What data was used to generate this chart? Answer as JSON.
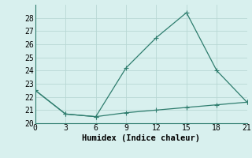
{
  "xlabel": "Humidex (Indice chaleur)",
  "line1_x": [
    0,
    3,
    6,
    9,
    12,
    15,
    18,
    21
  ],
  "line1_y": [
    22.5,
    20.7,
    20.5,
    24.2,
    26.5,
    28.4,
    24.0,
    21.6
  ],
  "line2_x": [
    0,
    3,
    6,
    9,
    12,
    15,
    18,
    21
  ],
  "line2_y": [
    22.5,
    20.7,
    20.5,
    20.8,
    21.0,
    21.2,
    21.4,
    21.6
  ],
  "line_color": "#2e7d6e",
  "bg_color": "#d8f0ee",
  "grid_color": "#b8d8d4",
  "xlim": [
    0,
    21
  ],
  "ylim": [
    20,
    29
  ],
  "xticks": [
    0,
    3,
    6,
    9,
    12,
    15,
    18,
    21
  ],
  "yticks": [
    20,
    21,
    22,
    23,
    24,
    25,
    26,
    27,
    28
  ],
  "markersize": 2.5,
  "linewidth": 0.9,
  "tick_fontsize": 7,
  "xlabel_fontsize": 7.5
}
